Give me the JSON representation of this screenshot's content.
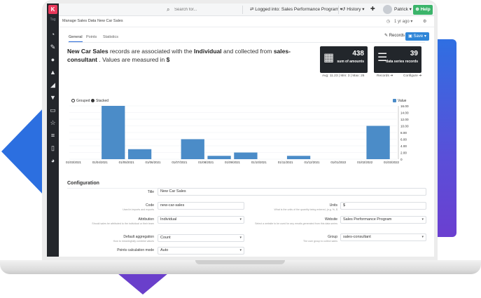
{
  "sidebar": {
    "logo_letter": "K",
    "tag": "Tag"
  },
  "topbar": {
    "search_placeholder": "Search for...",
    "logged_into": "Logged into: Sales Performance Program",
    "history": "History",
    "user": "Patrick",
    "help": "Help"
  },
  "breadcrumb": {
    "items": [
      "Manage Sales Data",
      "New Car Sales"
    ],
    "period": "1 yr ago"
  },
  "tabs": [
    "General",
    "Points",
    "Statistics"
  ],
  "actions": {
    "records": "Records",
    "save": "Save"
  },
  "description": {
    "name": "New Car Sales",
    "t1": " records are associated with the ",
    "entity": "Individual",
    "t2": " and collected from ",
    "source": "sales-consultant",
    "t3": " . Values are measured in ",
    "unit": "$"
  },
  "cards": [
    {
      "icon": "calculator-icon",
      "value": "438",
      "label": "sum of amounts",
      "sub": "Avg: 11.23 | Min: 3 | Max: 26"
    },
    {
      "icon": "database-icon",
      "value": "39",
      "label": "data series records",
      "sub_left": "Records",
      "sub_right": "Configure"
    }
  ],
  "chart_legend": {
    "grouped": "Grouped",
    "stacked": "Stacked",
    "value": "Value"
  },
  "chart_data": {
    "type": "bar",
    "categories": [
      "01/03/2021",
      "01/04/2021",
      "01/05/2021",
      "01/06/2021",
      "01/07/2021",
      "01/08/2021",
      "01/09/2021",
      "01/10/2021",
      "01/11/2021",
      "01/12/2021",
      "01/01/2022",
      "01/02/2022",
      "01/03/2022"
    ],
    "series": [
      {
        "name": "Value",
        "values": [
          0,
          16,
          3,
          0,
          6,
          1,
          2,
          0,
          1,
          0,
          0,
          10,
          0
        ]
      }
    ],
    "ylim": [
      0,
      16
    ],
    "yticks": [
      "0",
      "2.00",
      "4.00",
      "6.00",
      "8.00",
      "10.00",
      "12.00",
      "14.00",
      "16.00"
    ],
    "color": "#4b8cc8",
    "grid": true,
    "legend": "top-right"
  },
  "configuration": {
    "title": "Configuration",
    "fields": {
      "title": {
        "label": "Title",
        "value": "New Car Sales"
      },
      "code": {
        "label": "Code",
        "help": "Used in imports and exports",
        "value": "new-car-sales"
      },
      "units": {
        "label": "Units",
        "help": "What is the units of the quantity being entered, (e.g. %, $",
        "value": "$"
      },
      "attribution": {
        "label": "Attribution",
        "help": "Should sales be attributed to the individual or their team",
        "value": "Individual"
      },
      "website": {
        "label": "Website",
        "help": "Select a website to be used for any emails generated from this data series",
        "value": "Sales Performance Program"
      },
      "aggregation": {
        "label": "Default aggregation",
        "help": "How to meaningfully combine values",
        "value": "Count"
      },
      "group": {
        "label": "Group",
        "help": "The user group to collect sales",
        "value": "sales-consultant"
      },
      "points_mode": {
        "label": "Points calculation mode",
        "value": "Auto"
      }
    }
  }
}
